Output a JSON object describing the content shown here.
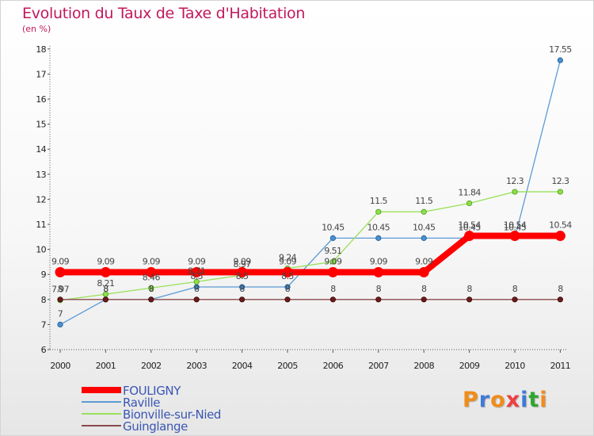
{
  "chart_data": {
    "type": "line",
    "title": "Evolution du Taux de Taxe d'Habitation",
    "subtitle": "(en %)",
    "x": [
      "2000",
      "2001",
      "2002",
      "2003",
      "2004",
      "2005",
      "2006",
      "2007",
      "2008",
      "2009",
      "2010",
      "2011"
    ],
    "ylim": [
      6,
      18
    ],
    "yticks": [
      6,
      7,
      8,
      9,
      10,
      11,
      12,
      13,
      14,
      15,
      16,
      17,
      18
    ],
    "grid": false,
    "legend_position": "bottom-left",
    "series": [
      {
        "name": "FOULIGNY",
        "color": "#ff0000",
        "values": [
          9.09,
          9.09,
          9.09,
          9.09,
          9.09,
          9.09,
          9.09,
          9.09,
          9.09,
          10.54,
          10.54,
          10.54
        ],
        "labels": [
          "9.09",
          "9.09",
          "9.09",
          "9.09",
          "9.09",
          "9.09",
          "9.09",
          "9.09",
          "9.09",
          "10.54",
          "10.54",
          "10.54"
        ]
      },
      {
        "name": "Raville",
        "color": "#5b9bd5",
        "values": [
          7,
          8,
          8,
          8.5,
          8.5,
          8.5,
          10.45,
          10.45,
          10.45,
          10.45,
          10.45,
          17.55
        ],
        "labels": [
          "7",
          "8",
          "8",
          "8.5",
          "8.5",
          "8.5",
          "10.45",
          "10.45",
          "10.45",
          "10.45",
          "10.45",
          "17.55"
        ]
      },
      {
        "name": "Bionville-sur-Nied",
        "color": "#99e05a",
        "values": [
          7.97,
          8.21,
          8.46,
          8.71,
          8.97,
          9.24,
          9.51,
          11.5,
          11.5,
          11.84,
          12.3,
          12.3
        ],
        "labels": [
          "7.97",
          "8.21",
          "8.46",
          "8.71",
          "8.97",
          "9.24",
          "9.51",
          "11.5",
          "11.5",
          "11.84",
          "12.3",
          "12.3"
        ]
      },
      {
        "name": "Guinglange",
        "color": "#8b4a4a",
        "values": [
          8,
          8,
          8,
          8,
          8,
          8,
          8,
          8,
          8,
          8,
          8,
          8
        ],
        "labels": [
          "8",
          "8",
          "8",
          "8",
          "8",
          "8",
          "8",
          "8",
          "8",
          "8",
          "8",
          "8"
        ]
      }
    ]
  },
  "logo": {
    "text": "Proxiti",
    "colors": [
      "#f08c1a",
      "#3f7ad6",
      "#f08c1a",
      "#ef4040",
      "#3f7ad6",
      "#2fa62f",
      "#f08c1a"
    ]
  }
}
